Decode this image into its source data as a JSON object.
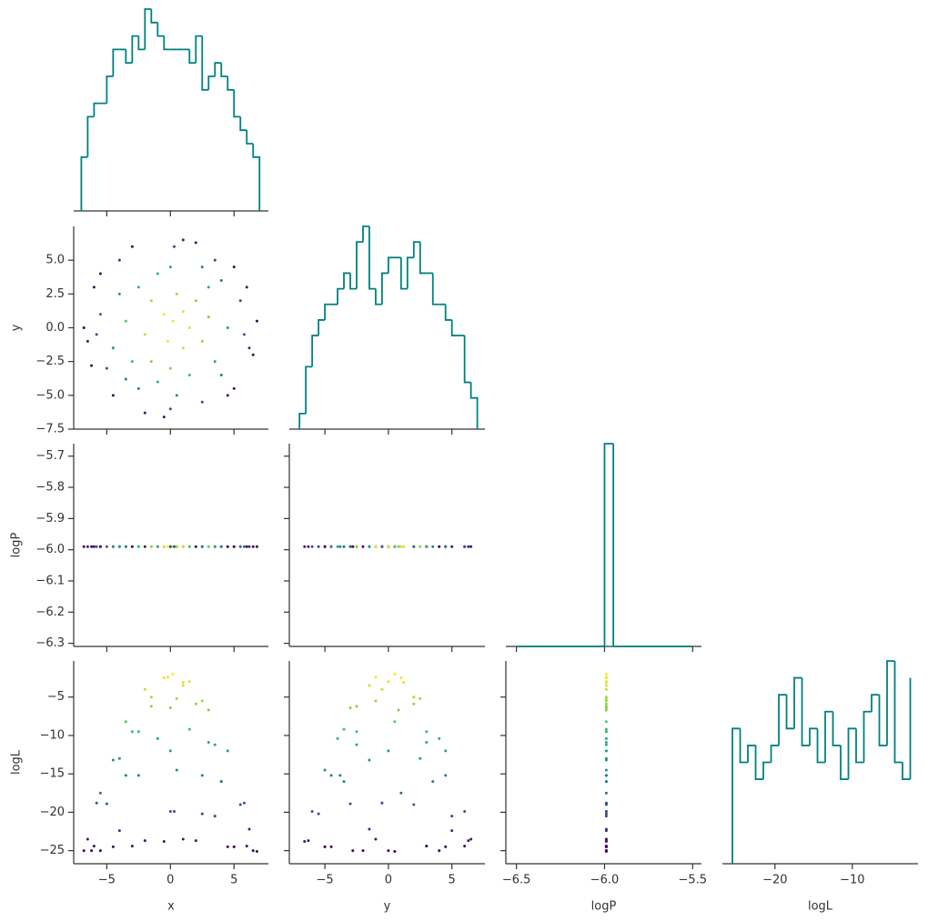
{
  "chart_data": {
    "type": "corner",
    "hist_color": "#008080",
    "color_by": "logL",
    "colormap": [
      "#440154",
      "#482878",
      "#3e4989",
      "#31688e",
      "#26828e",
      "#1f9e89",
      "#35b779",
      "#6ece58",
      "#b5de2b",
      "#fde725"
    ],
    "variables": [
      {
        "name": "x",
        "xlim": [
          -7.6,
          7.7
        ],
        "xticks": [
          {
            "value": -5,
            "label": "−5"
          },
          {
            "value": 0,
            "label": "0"
          },
          {
            "value": 5,
            "label": "5"
          }
        ]
      },
      {
        "name": "y",
        "xlim": [
          -7.8,
          7.6
        ],
        "xticks": [
          {
            "value": -5,
            "label": "−5"
          },
          {
            "value": 0,
            "label": "0"
          },
          {
            "value": 5,
            "label": "5"
          }
        ],
        "ylim": [
          -7.5,
          7.5
        ],
        "yticks": [
          {
            "value": -7.5,
            "label": "−7.5"
          },
          {
            "value": -5,
            "label": "−5.0"
          },
          {
            "value": -2.5,
            "label": "−2.5"
          },
          {
            "value": 0,
            "label": "0.0"
          },
          {
            "value": 2.5,
            "label": "2.5"
          },
          {
            "value": 5,
            "label": "5.0"
          }
        ]
      },
      {
        "name": "logP",
        "xlim": [
          -6.56,
          -5.45
        ],
        "xticks": [
          {
            "value": -6.5,
            "label": "−6.5"
          },
          {
            "value": -6.0,
            "label": "−6.0"
          },
          {
            "value": -5.5,
            "label": "−5.5"
          }
        ],
        "ylim": [
          -6.31,
          -5.66
        ],
        "yticks": [
          {
            "value": -6.3,
            "label": "−6.3"
          },
          {
            "value": -6.2,
            "label": "−6.2"
          },
          {
            "value": -6.1,
            "label": "−6.1"
          },
          {
            "value": -6.0,
            "label": "−6.0"
          },
          {
            "value": -5.9,
            "label": "−5.9"
          },
          {
            "value": -5.8,
            "label": "−5.8"
          },
          {
            "value": -5.7,
            "label": "−5.7"
          }
        ]
      },
      {
        "name": "logL",
        "xlim": [
          -26.8,
          -1.5
        ],
        "xticks": [
          {
            "value": -20,
            "label": "−20"
          },
          {
            "value": -10,
            "label": "−10"
          }
        ],
        "ylim": [
          -26.7,
          -0.3
        ],
        "yticks": [
          {
            "value": -25,
            "label": "−25"
          },
          {
            "value": -20,
            "label": "−20"
          },
          {
            "value": -15,
            "label": "−15"
          },
          {
            "value": -10,
            "label": "−10"
          },
          {
            "value": -5,
            "label": "−5"
          }
        ]
      }
    ],
    "samples": {
      "x": [
        0.2,
        -1.5,
        2.5,
        -3.0,
        4.0,
        -5.5,
        6.2,
        -6.5,
        1.0,
        -0.5,
        3.5,
        -4.0,
        5.0,
        -4.5,
        6.8,
        -6.8,
        0.0,
        2.0,
        -2.0,
        1.0,
        -1.0,
        3.0,
        4.5,
        -4.0,
        0.5,
        -2.5,
        5.5,
        -5.0,
        2.5,
        -3.0,
        0.5,
        -0.5,
        1.5,
        -3.5,
        3.5,
        -1.5,
        6.0,
        -6.0,
        4.5,
        -2.0,
        2.0,
        -6.2,
        6.5,
        0.0,
        -4.5,
        5.0,
        -5.5,
        1.5,
        -2.5,
        3.0,
        -1.0,
        4.0,
        -3.5,
        5.8,
        -5.8,
        0.3,
        0.0,
        2.5,
        -0.2,
        1.0
      ],
      "y": [
        0.5,
        2.0,
        -1.0,
        -2.5,
        3.5,
        1.0,
        -1.5,
        -1.0,
        6.5,
        -6.6,
        5.0,
        5.0,
        -4.5,
        -5.0,
        0.5,
        0.0,
        -3.0,
        2.0,
        -0.5,
        -1.5,
        4.0,
        3.0,
        0.0,
        2.5,
        -5.0,
        -4.5,
        2.0,
        -3.0,
        -5.5,
        6.0,
        2.5,
        1.0,
        0.0,
        0.5,
        -2.5,
        -2.5,
        3.0,
        3.0,
        -5.0,
        -6.3,
        6.3,
        -2.8,
        -2.0,
        4.5,
        -1.5,
        4.5,
        4.0,
        -3.5,
        3.0,
        0.8,
        -4.0,
        -3.5,
        -3.8,
        -0.5,
        -0.5,
        6.0,
        -6.0,
        4.5,
        -1.0,
        1.2
      ],
      "logP": [
        -5.99,
        -5.99,
        -5.99,
        -5.99,
        -5.99,
        -5.99,
        -5.99,
        -5.99,
        -5.99,
        -5.99,
        -5.99,
        -5.99,
        -5.99,
        -5.99,
        -5.99,
        -5.99,
        -5.99,
        -5.99,
        -5.99,
        -5.99,
        -5.99,
        -5.99,
        -5.99,
        -5.99,
        -5.99,
        -5.99,
        -5.99,
        -5.99,
        -5.99,
        -5.99,
        -5.99,
        -5.99,
        -5.99,
        -5.99,
        -5.99,
        -5.99,
        -5.99,
        -5.99,
        -5.99,
        -5.99,
        -5.99,
        -5.99,
        -5.99,
        -5.99,
        -5.99,
        -5.99,
        -5.99,
        -5.99,
        -5.99,
        -5.99,
        -5.99,
        -5.99,
        -5.99,
        -5.99,
        -5.99,
        -5.99,
        -5.99,
        -5.99,
        -5.99,
        -5.99
      ],
      "logL": [
        -2.0,
        -5.0,
        -5.5,
        -9.5,
        -16.0,
        -17.5,
        -22.2,
        -23.5,
        -23.5,
        -23.8,
        -20.5,
        -22.4,
        -24.5,
        -24.5,
        -25.1,
        -25.0,
        -6.4,
        -5.9,
        -4.0,
        -3.5,
        -10.4,
        -10.9,
        -12.0,
        -13.0,
        -14.5,
        -15.2,
        -19.0,
        -18.9,
        -20.2,
        -24.4,
        -5.2,
        -2.5,
        -3.0,
        -8.2,
        -11.2,
        -6.2,
        -24.4,
        -24.4,
        -24.5,
        -23.7,
        -23.7,
        -25.0,
        -25.0,
        -12.0,
        -13.2,
        -24.5,
        -25.0,
        -9.2,
        -9.5,
        -6.7,
        -10.4,
        -16.0,
        -15.2,
        -18.8,
        -18.8,
        -19.9,
        -19.9,
        -15.2,
        -2.4,
        -3.1
      ]
    },
    "histograms": [
      {
        "bins": [
          -7,
          -6.5,
          -6,
          -5.5,
          -5,
          -4.5,
          -4,
          -3.5,
          -3,
          -2.5,
          -2,
          -1.5,
          -1,
          -0.5,
          0,
          0.5,
          1,
          1.5,
          2,
          2.5,
          3,
          3.5,
          4,
          4.5,
          5,
          5.5,
          6,
          6.5,
          7
        ],
        "counts": [
          4,
          7,
          8,
          8,
          10,
          12,
          12,
          11,
          13,
          12,
          15,
          14,
          13,
          12,
          12,
          12,
          12,
          11,
          13,
          9,
          10,
          11,
          10,
          9,
          7,
          6,
          5,
          4
        ]
      },
      {
        "bins": [
          -7,
          -6.5,
          -6,
          -5.5,
          -5,
          -4.5,
          -4,
          -3.5,
          -3,
          -2.5,
          -2,
          -1.5,
          -1,
          -0.5,
          0,
          0.5,
          1,
          1.5,
          2,
          2.5,
          3,
          3.5,
          4,
          4.5,
          5,
          5.5,
          6,
          6.5,
          7
        ],
        "counts": [
          1,
          4,
          6,
          7,
          8,
          8,
          9,
          10,
          9,
          12,
          13,
          9,
          8,
          10,
          11,
          11,
          9,
          11,
          12,
          10,
          10,
          8,
          8,
          7,
          6,
          6,
          3,
          2
        ]
      },
      {
        "bins": [
          -6.5,
          -6.45,
          -6.4,
          -6.35,
          -6.3,
          -6.25,
          -6.2,
          -6.15,
          -6.1,
          -6.05,
          -6.0,
          -5.95,
          -5.9,
          -5.85,
          -5.8,
          -5.75,
          -5.7,
          -5.65,
          -5.6,
          -5.55,
          -5.5
        ],
        "counts": [
          0,
          0,
          0,
          0,
          0,
          0,
          0,
          0,
          0,
          0,
          1000,
          0,
          0,
          0,
          0,
          0,
          0,
          0,
          0,
          0
        ]
      },
      {
        "bins": [
          -25.5,
          -24.5,
          -23.5,
          -22.5,
          -21.5,
          -20.5,
          -19.5,
          -18.5,
          -17.5,
          -16.5,
          -15.5,
          -14.5,
          -13.5,
          -12.5,
          -11.5,
          -10.5,
          -9.5,
          -8.5,
          -7.5,
          -6.5,
          -5.5,
          -4.5,
          -3.5,
          -2.5
        ],
        "counts": [
          8,
          6,
          7,
          5,
          6,
          7,
          10,
          8,
          11,
          7,
          8,
          6,
          9,
          7,
          5,
          8,
          6,
          9,
          10,
          7,
          12,
          6,
          5,
          11
        ]
      }
    ]
  }
}
